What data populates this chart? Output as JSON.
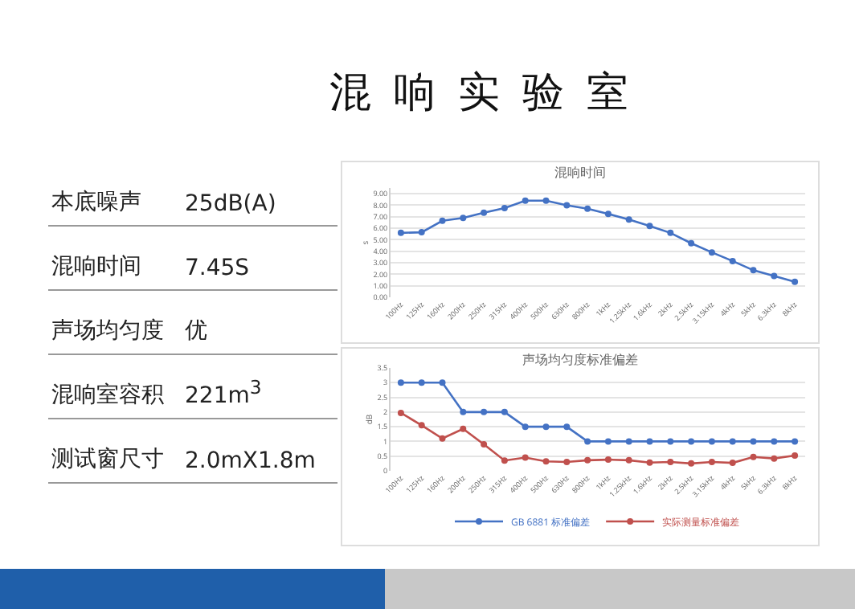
{
  "chart_data": [
    {
      "type": "other",
      "title": "混响实验室",
      "annotations": [
        "本底噪声",
        "25dB(A)",
        "混响时间",
        "7.45S",
        "声场均匀度",
        "优",
        "混响室容积",
        "221m$^{3}$",
        "测试窗尺寸",
        "2.0mX1.8m"
      ]
    },
    {
      "type": "line",
      "title": "混响时间",
      "ylabel": "s",
      "categories": [
        "100Hz",
        "125Hz",
        "160Hz",
        "200Hz",
        "250Hz",
        "315Hz",
        "400Hz",
        "500Hz",
        "630Hz",
        "800Hz",
        "1kHz",
        "1.25kHz",
        "1.6kHz",
        "2kHz",
        "2.5kHz",
        "3.15kHz",
        "4kHz",
        "5kHz",
        "6.3kHz",
        "8kHz"
      ],
      "series": [
        {
          "color": "#4472c4",
          "values": [
            5.6,
            5.65,
            6.65,
            6.9,
            7.35,
            7.75,
            8.4,
            8.4,
            8.0,
            7.7,
            7.25,
            6.75,
            6.2,
            5.6,
            4.7,
            3.9,
            3.15,
            2.35,
            1.85,
            1.35
          ]
        }
      ],
      "ylim": [
        0,
        9.5
      ],
      "yticks": [
        {
          "value": 0,
          "label": "0.00"
        },
        {
          "value": 1,
          "label": "1.00"
        },
        {
          "value": 2,
          "label": "2.00"
        },
        {
          "value": 3,
          "label": "3.00"
        },
        {
          "value": 4,
          "label": "4.00"
        },
        {
          "value": 5,
          "label": "5.00"
        },
        {
          "value": 6,
          "label": "6.00"
        },
        {
          "value": 7,
          "label": "7.00"
        },
        {
          "value": 8,
          "label": "8.00"
        },
        {
          "value": 9,
          "label": "9.00"
        }
      ],
      "grid": "y",
      "marker": "circle",
      "legend": false
    },
    {
      "type": "line",
      "title": "声场均匀度标准偏差",
      "ylabel": "dB",
      "categories": [
        "100Hz",
        "125Hz",
        "160Hz",
        "200Hz",
        "250Hz",
        "315Hz",
        "400Hz",
        "500Hz",
        "630Hz",
        "800Hz",
        "1kHz",
        "1.25kHz",
        "1.6kHz",
        "2kHz",
        "2.5kHz",
        "3.15kHz",
        "4kHz",
        "5kHz",
        "6.3kHz",
        "8kHz"
      ],
      "series": [
        {
          "name": "GB 6881 标准偏差",
          "color": "#4472c4",
          "values": [
            3,
            3,
            3,
            2,
            2,
            2,
            1.5,
            1.5,
            1.5,
            1,
            1,
            1,
            1,
            1,
            1,
            1,
            1,
            1,
            1,
            1
          ]
        },
        {
          "name": "实际测量标准偏差",
          "color": "#c0504d",
          "values": [
            1.97,
            1.55,
            1.1,
            1.43,
            0.9,
            0.35,
            0.45,
            0.32,
            0.3,
            0.36,
            0.38,
            0.36,
            0.28,
            0.3,
            0.25,
            0.3,
            0.27,
            0.47,
            0.42,
            0.52
          ]
        }
      ],
      "ylim": [
        0,
        3.5
      ],
      "yticks": [
        0,
        0.5,
        1,
        1.5,
        2,
        2.5,
        3,
        3.5
      ],
      "grid": "y",
      "marker": "circle",
      "legend": "bottom"
    }
  ]
}
